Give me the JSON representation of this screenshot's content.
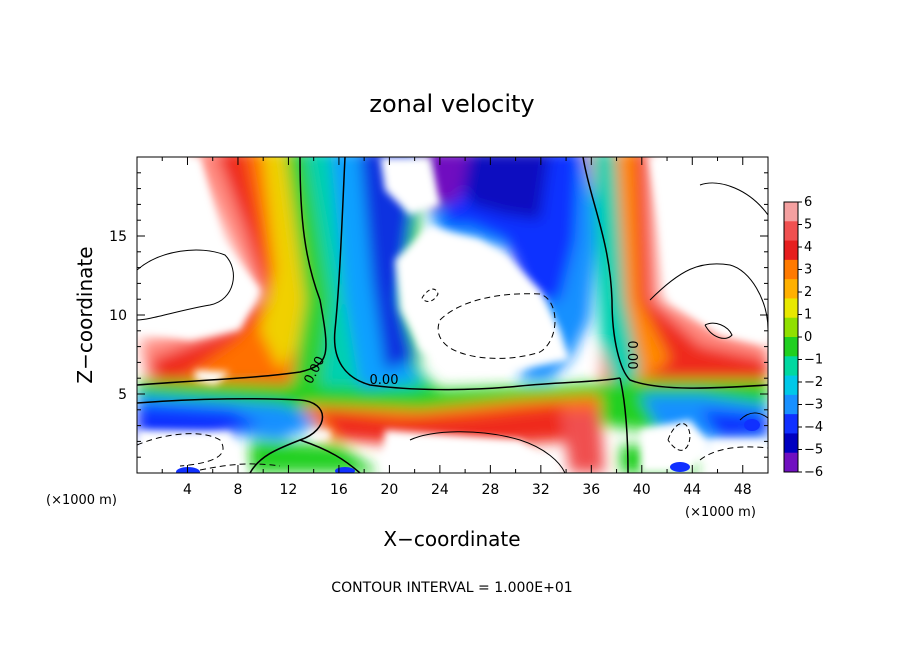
{
  "chart_data": {
    "type": "heatmap",
    "title": "zonal velocity",
    "xlabel": "X−coordinate",
    "ylabel": "Z−coordinate",
    "x_unit_label": "(×1000 m)",
    "xlim": [
      0,
      50
    ],
    "ylim": [
      0,
      20
    ],
    "x_ticks": [
      4,
      8,
      12,
      16,
      20,
      24,
      28,
      32,
      36,
      40,
      44,
      48
    ],
    "y_ticks": [
      5,
      10,
      15
    ],
    "colorbar": {
      "levels": [
        6,
        5,
        4,
        3,
        2,
        1,
        0,
        -1,
        -2,
        -3,
        -4,
        -5,
        -6
      ],
      "labels": [
        "6",
        "5",
        "4",
        "3",
        "2",
        "1",
        "0",
        "−1",
        "−2",
        "−3",
        "−4",
        "−5",
        "−6"
      ],
      "colors": [
        "#f4a0a0",
        "#f05050",
        "#e61e1e",
        "#ff7a00",
        "#ffb000",
        "#e8e800",
        "#90e000",
        "#20d020",
        "#00d8a0",
        "#00c8e8",
        "#1890ff",
        "#1030ff",
        "#0000c0",
        "#7010c0"
      ]
    },
    "contour_labels": [
      "0.00",
      "0.00",
      "0.00"
    ],
    "footer": "CONTOUR INTERVAL = 1.000E+01"
  }
}
